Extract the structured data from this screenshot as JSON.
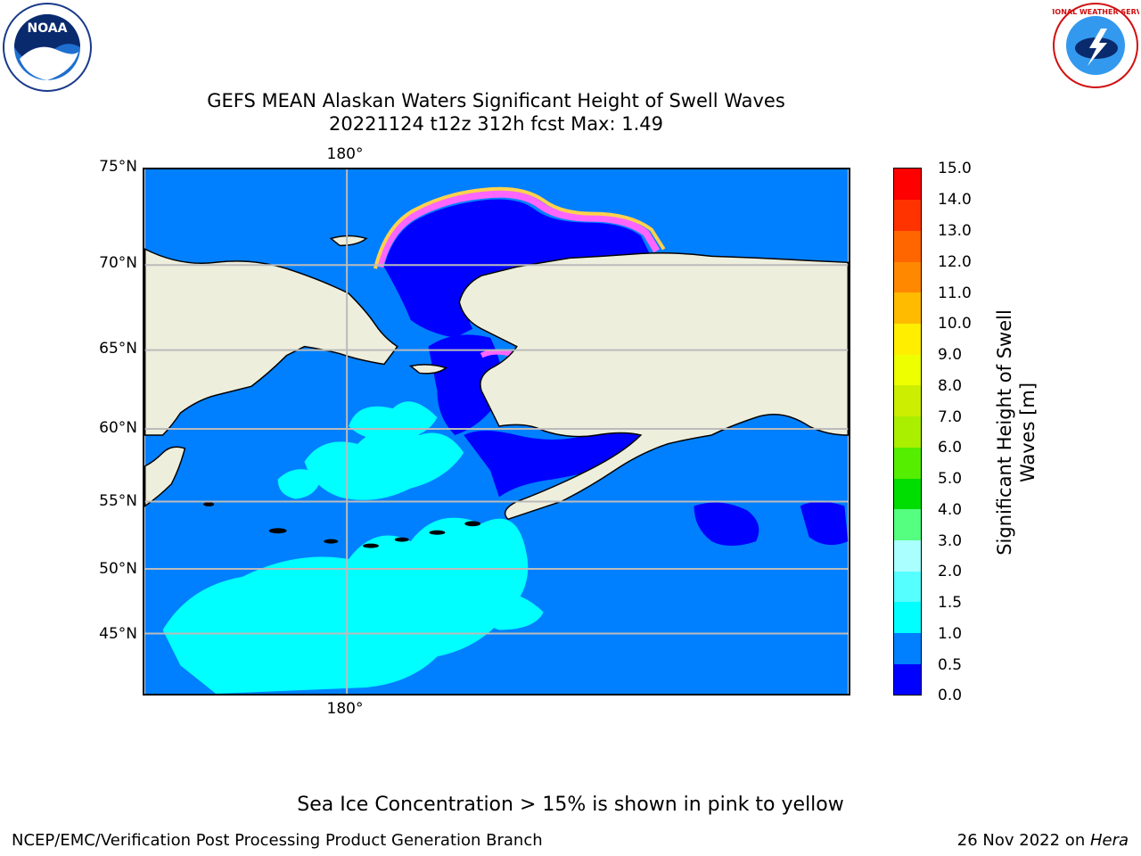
{
  "header": {
    "title_line1": "GEFS MEAN Alaskan Waters Significant Height of Swell Waves",
    "title_line2": "20221124 t12z 312h fcst   Max: 1.49"
  },
  "logos": {
    "noaa_text": "NOAA",
    "nws_text": "NATIONAL WEATHER SERVICE"
  },
  "map": {
    "lat_labels": [
      "75°N",
      "70°N",
      "65°N",
      "60°N",
      "55°N",
      "50°N",
      "45°N"
    ],
    "lon_label_top": "180°",
    "lon_label_bottom": "180°",
    "colors": {
      "land": "#EEEEDD",
      "ocean_low": "#0000FF",
      "ocean_mid": "#0080FF",
      "ocean_high": "#00FFFF",
      "ice_pink": "#FF66FF",
      "ice_yellow": "#FFD24D",
      "grid": "#BBBBBB"
    }
  },
  "colorbar": {
    "label_line1": "Significant Height of Swell",
    "label_line2": "Waves [m]",
    "ticks": [
      "15.0",
      "14.0",
      "13.0",
      "12.0",
      "11.0",
      "10.0",
      "9.0",
      "8.0",
      "7.0",
      "6.0",
      "5.0",
      "4.0",
      "3.0",
      "2.0",
      "1.5",
      "1.0",
      "0.5",
      "0.0"
    ],
    "bins": [
      {
        "from": 0.0,
        "to": 0.5,
        "color": "#0000FF"
      },
      {
        "from": 0.5,
        "to": 1.0,
        "color": "#0080FF"
      },
      {
        "from": 1.0,
        "to": 1.5,
        "color": "#00FFFF"
      },
      {
        "from": 1.5,
        "to": 2.0,
        "color": "#55FFFF"
      },
      {
        "from": 2.0,
        "to": 3.0,
        "color": "#AAFFFF"
      },
      {
        "from": 3.0,
        "to": 4.0,
        "color": "#55FF80"
      },
      {
        "from": 4.0,
        "to": 5.0,
        "color": "#00DD00"
      },
      {
        "from": 5.0,
        "to": 6.0,
        "color": "#55EE00"
      },
      {
        "from": 6.0,
        "to": 7.0,
        "color": "#AAEE00"
      },
      {
        "from": 7.0,
        "to": 8.0,
        "color": "#CCEE00"
      },
      {
        "from": 8.0,
        "to": 9.0,
        "color": "#EEFF00"
      },
      {
        "from": 9.0,
        "to": 10.0,
        "color": "#FFEE00"
      },
      {
        "from": 10.0,
        "to": 11.0,
        "color": "#FFBB00"
      },
      {
        "from": 11.0,
        "to": 12.0,
        "color": "#FF8800"
      },
      {
        "from": 12.0,
        "to": 13.0,
        "color": "#FF6600"
      },
      {
        "from": 13.0,
        "to": 14.0,
        "color": "#FF3300"
      },
      {
        "from": 14.0,
        "to": 15.0,
        "color": "#FF0000"
      }
    ]
  },
  "footer": {
    "note": "Sea Ice Concentration > 15% is shown in pink to yellow",
    "left": "NCEP/EMC/Verification Post Processing Product Generation Branch",
    "right_prefix": "26 Nov 2022 on ",
    "right_host": "Hera"
  }
}
